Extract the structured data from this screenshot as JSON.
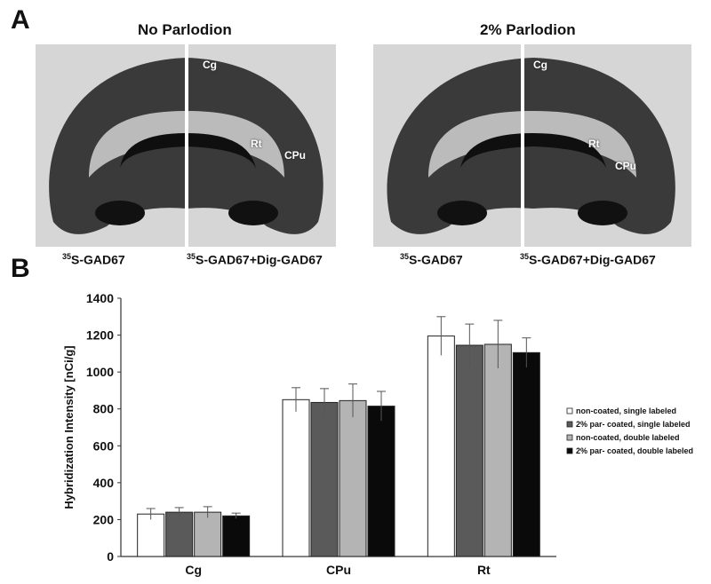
{
  "panel_a": {
    "letter": "A",
    "left_title": "No Parlodion",
    "right_title": "2% Parlodion",
    "left_labels": {
      "cg": "Cg",
      "rt": "Rt",
      "cpu": "CPu"
    },
    "right_labels": {
      "cg": "Cg",
      "rt": "Rt",
      "cpu": "CPu"
    },
    "captions": {
      "left_single": "35S-GAD67",
      "left_double": "35S-GAD67+Dig-GAD67",
      "right_single": "35S-GAD67",
      "right_double": "35S-GAD67+Dig-GAD67"
    }
  },
  "panel_b": {
    "letter": "B"
  },
  "colors": {
    "non_coated_single": "#ffffff",
    "par_coated_single": "#5a5a5a",
    "non_coated_double": "#b4b4b4",
    "par_coated_double": "#0a0a0a"
  },
  "chart_data": {
    "type": "bar",
    "categories": [
      "Cg",
      "CPu",
      "Rt"
    ],
    "series": [
      {
        "name": "non-coated, single labeled",
        "values": [
          230,
          850,
          1195
        ],
        "errors": [
          30,
          65,
          105
        ]
      },
      {
        "name": "2% par- coated, single labeled",
        "values": [
          240,
          835,
          1145
        ],
        "errors": [
          25,
          75,
          115
        ]
      },
      {
        "name": "non-coated, double labeled",
        "values": [
          240,
          845,
          1150
        ],
        "errors": [
          30,
          90,
          130
        ]
      },
      {
        "name": "2% par- coated, double labeled",
        "values": [
          220,
          815,
          1105
        ],
        "errors": [
          15,
          80,
          80
        ]
      }
    ],
    "ylabel": "Hybridization Intensity [nCi/g]",
    "ylim": [
      0,
      1400
    ],
    "yticks": [
      0,
      200,
      400,
      600,
      800,
      1000,
      1200,
      1400
    ],
    "legend_position": "right",
    "grid": false
  }
}
